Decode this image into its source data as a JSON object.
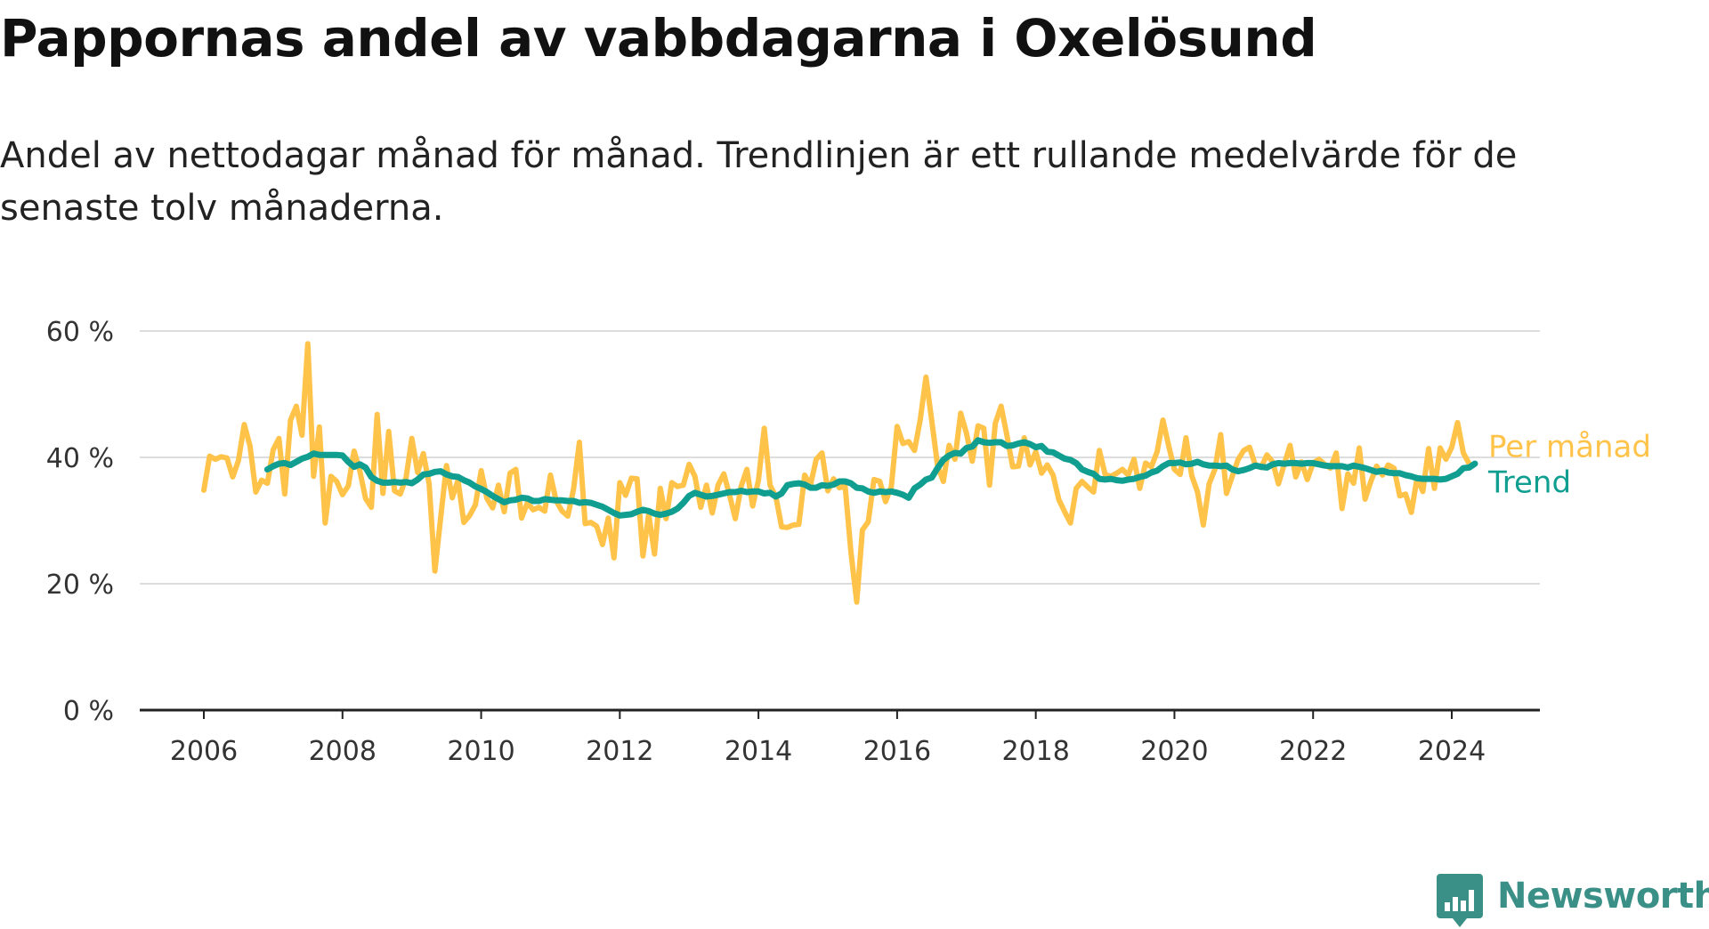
{
  "title": "Pappornas andel av vabbdagarna i Oxelösund",
  "subtitle": "Andel av nettodagar månad för månad. Trendlinjen är ett rullande medelvärde för de senaste tolv månaderna.",
  "brand": {
    "name": "Newsworthy",
    "logo_icon": "bar-chart-badge-icon",
    "color": "#3a8f86"
  },
  "colors": {
    "monthly": "#ffc34a",
    "trend": "#0f9e90",
    "grid": "#dddddd",
    "axis": "#222222"
  },
  "chart_data": {
    "type": "line",
    "title": "Pappornas andel av vabbdagarna i Oxelösund",
    "subtitle": "Andel av nettodagar månad för månad. Trendlinjen är ett rullande medelvärde för de senaste tolv månaderna.",
    "xlabel": "",
    "ylabel": "",
    "x_unit": "year (decimal, monthly)",
    "xlim": [
      2005.5,
      2025.0
    ],
    "ylim": [
      0,
      60
    ],
    "x_ticks": [
      2006,
      2008,
      2010,
      2012,
      2014,
      2016,
      2018,
      2020,
      2022,
      2024
    ],
    "y_ticks": [
      {
        "value": 0,
        "label": "0 %"
      },
      {
        "value": 20,
        "label": "20 %"
      },
      {
        "value": 40,
        "label": "40 %"
      },
      {
        "value": 60,
        "label": "60 %"
      }
    ],
    "grid": "horizontal",
    "legend": "inline labels at right end of lines",
    "series": [
      {
        "name": "Per månad",
        "color": "#ffc34a",
        "x_start": 2006.0,
        "x_step": 0.0833333,
        "values": [
          34.8,
          40.2,
          39.7,
          40.1,
          39.9,
          36.9,
          39.5,
          45.2,
          41.8,
          34.5,
          36.4,
          35.9,
          41.2,
          43.0,
          34.2,
          45.9,
          48.1,
          43.5,
          58.0,
          37.0,
          44.8,
          29.6,
          37.0,
          36.2,
          34.1,
          35.5,
          41.0,
          37.9,
          33.5,
          32.1,
          46.8,
          34.3,
          44.1,
          34.7,
          34.2,
          36.8,
          43.0,
          37.6,
          40.6,
          35.8,
          22.0,
          30.5,
          38.7,
          33.6,
          36.4,
          29.7,
          30.8,
          32.5,
          37.9,
          33.5,
          32.0,
          35.6,
          31.4,
          37.5,
          38.1,
          30.4,
          32.8,
          31.7,
          32.1,
          31.5,
          37.2,
          33.1,
          31.5,
          30.7,
          35.0,
          42.4,
          29.5,
          29.7,
          29.1,
          26.2,
          30.4,
          24.1,
          36.0,
          34.0,
          36.7,
          36.6,
          24.4,
          31.0,
          24.7,
          35.1,
          30.3,
          36.0,
          35.4,
          35.6,
          38.9,
          37.0,
          32.1,
          35.6,
          31.2,
          35.6,
          37.4,
          34.0,
          30.3,
          35.4,
          38.1,
          32.3,
          36.4,
          44.6,
          35.6,
          33.8,
          29.0,
          28.9,
          29.3,
          29.4,
          37.2,
          35.6,
          39.7,
          40.7,
          34.7,
          36.6,
          35.2,
          35.4,
          25.0,
          17.1,
          28.5,
          29.8,
          36.5,
          36.2,
          33.0,
          35.4,
          44.9,
          42.2,
          42.5,
          41.1,
          46.0,
          52.7,
          45.8,
          38.7,
          36.2,
          41.9,
          39.7,
          47.0,
          43.8,
          39.4,
          45.0,
          44.6,
          35.6,
          45.4,
          48.1,
          43.5,
          38.5,
          38.6,
          43.1,
          38.8,
          40.9,
          37.5,
          38.8,
          37.2,
          33.3,
          31.4,
          29.6,
          35.1,
          36.2,
          35.3,
          34.5,
          41.1,
          37.3,
          37.0,
          37.5,
          38.1,
          37.2,
          39.7,
          35.1,
          39.1,
          38.5,
          40.9,
          45.9,
          41.8,
          38.1,
          37.3,
          43.1,
          37.1,
          34.5,
          29.3,
          35.8,
          38.1,
          43.6,
          34.3,
          37.0,
          39.6,
          41.1,
          41.6,
          38.8,
          38.4,
          40.4,
          39.3,
          35.8,
          38.9,
          41.9,
          36.9,
          39.3,
          36.5,
          39.1,
          39.7,
          38.9,
          38.3,
          40.7,
          31.9,
          37.4,
          35.9,
          41.5,
          33.4,
          36.2,
          38.6,
          37.2,
          38.8,
          38.3,
          33.9,
          34.2,
          31.3,
          36.8,
          34.6,
          41.4,
          35.1,
          41.5,
          39.7,
          41.6,
          45.5,
          40.7,
          39.0
        ]
      },
      {
        "name": "Trend",
        "color": "#0f9e90",
        "x_start": 2006.9167,
        "x_step": 0.0833333,
        "values": [
          38.1,
          38.6,
          39.0,
          39.1,
          38.8,
          39.3,
          39.8,
          40.1,
          40.6,
          40.4,
          40.4,
          40.4,
          40.4,
          40.3,
          39.3,
          38.5,
          38.9,
          38.4,
          36.9,
          36.3,
          36.0,
          36.0,
          36.1,
          36.0,
          36.1,
          35.9,
          36.5,
          37.3,
          37.4,
          37.7,
          37.8,
          37.3,
          37.0,
          36.9,
          36.4,
          36.0,
          35.4,
          35.0,
          34.5,
          33.9,
          33.4,
          32.9,
          33.2,
          33.3,
          33.6,
          33.5,
          33.1,
          33.1,
          33.4,
          33.3,
          33.2,
          33.2,
          33.1,
          33.1,
          32.8,
          32.9,
          32.8,
          32.5,
          32.2,
          31.7,
          31.2,
          30.8,
          30.9,
          31.0,
          31.4,
          31.7,
          31.5,
          31.1,
          30.9,
          31.1,
          31.4,
          31.9,
          32.8,
          33.9,
          34.4,
          34.1,
          33.8,
          33.9,
          34.1,
          34.3,
          34.5,
          34.5,
          34.7,
          34.5,
          34.6,
          34.6,
          34.3,
          34.4,
          33.8,
          34.3,
          35.6,
          35.8,
          35.9,
          35.7,
          35.2,
          35.2,
          35.6,
          35.5,
          35.7,
          36.2,
          36.2,
          35.9,
          35.2,
          35.1,
          34.6,
          34.4,
          34.6,
          34.5,
          34.6,
          34.4,
          34.1,
          33.6,
          35.1,
          35.7,
          36.5,
          36.8,
          38.3,
          39.6,
          40.3,
          40.7,
          40.6,
          41.5,
          41.7,
          42.7,
          42.4,
          42.3,
          42.4,
          42.4,
          41.8,
          41.9,
          42.2,
          42.4,
          42.1,
          41.6,
          41.8,
          40.9,
          40.8,
          40.3,
          39.8,
          39.6,
          39.1,
          38.1,
          37.7,
          37.4,
          36.6,
          36.5,
          36.6,
          36.4,
          36.3,
          36.5,
          36.6,
          36.9,
          37.1,
          37.6,
          37.9,
          38.6,
          39.1,
          39.1,
          39.2,
          38.9,
          39.0,
          39.3,
          38.9,
          38.7,
          38.7,
          38.6,
          38.7,
          38.1,
          37.8,
          38.0,
          38.3,
          38.7,
          38.5,
          38.4,
          38.9,
          39.1,
          39.0,
          39.1,
          39.1,
          39.0,
          39.1,
          39.1,
          38.9,
          38.7,
          38.6,
          38.6,
          38.6,
          38.4,
          38.7,
          38.5,
          38.3,
          38.0,
          37.7,
          37.9,
          37.6,
          37.5,
          37.5,
          37.2,
          37.0,
          36.7,
          36.6,
          36.6,
          36.6,
          36.5,
          36.6,
          37.0,
          37.4,
          38.3,
          38.4,
          39.0
        ]
      }
    ]
  }
}
